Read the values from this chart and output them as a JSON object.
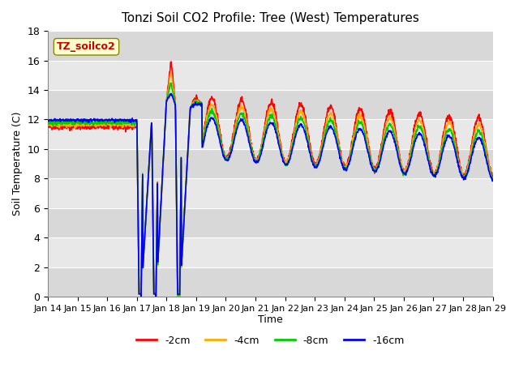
{
  "title": "Tonzi Soil CO2 Profile: Tree (West) Temperatures",
  "xlabel": "Time",
  "ylabel": "Soil Temperature (C)",
  "ylim": [
    0,
    18
  ],
  "xlim": [
    0,
    15
  ],
  "legend_label": "TZ_soilco2",
  "series_labels": [
    "-2cm",
    "-4cm",
    "-8cm",
    "-16cm"
  ],
  "series_colors": [
    "#ff0000",
    "#ffaa00",
    "#00cc00",
    "#0000ff"
  ],
  "bg_color": "#e8e8e8",
  "plot_bg": "#f0f0f0",
  "xtick_labels": [
    "Jan 14",
    "Jan 15",
    "Jan 16",
    "Jan 17",
    "Jan 18",
    "Jan 19",
    "Jan 20",
    "Jan 21",
    "Jan 22",
    "Jan 23",
    "Jan 24",
    "Jan 25",
    "Jan 26",
    "Jan 27",
    "Jan 28",
    "Jan 29"
  ],
  "ytick_labels": [
    "0",
    "2",
    "4",
    "6",
    "8",
    "10",
    "12",
    "14",
    "16",
    "18"
  ]
}
